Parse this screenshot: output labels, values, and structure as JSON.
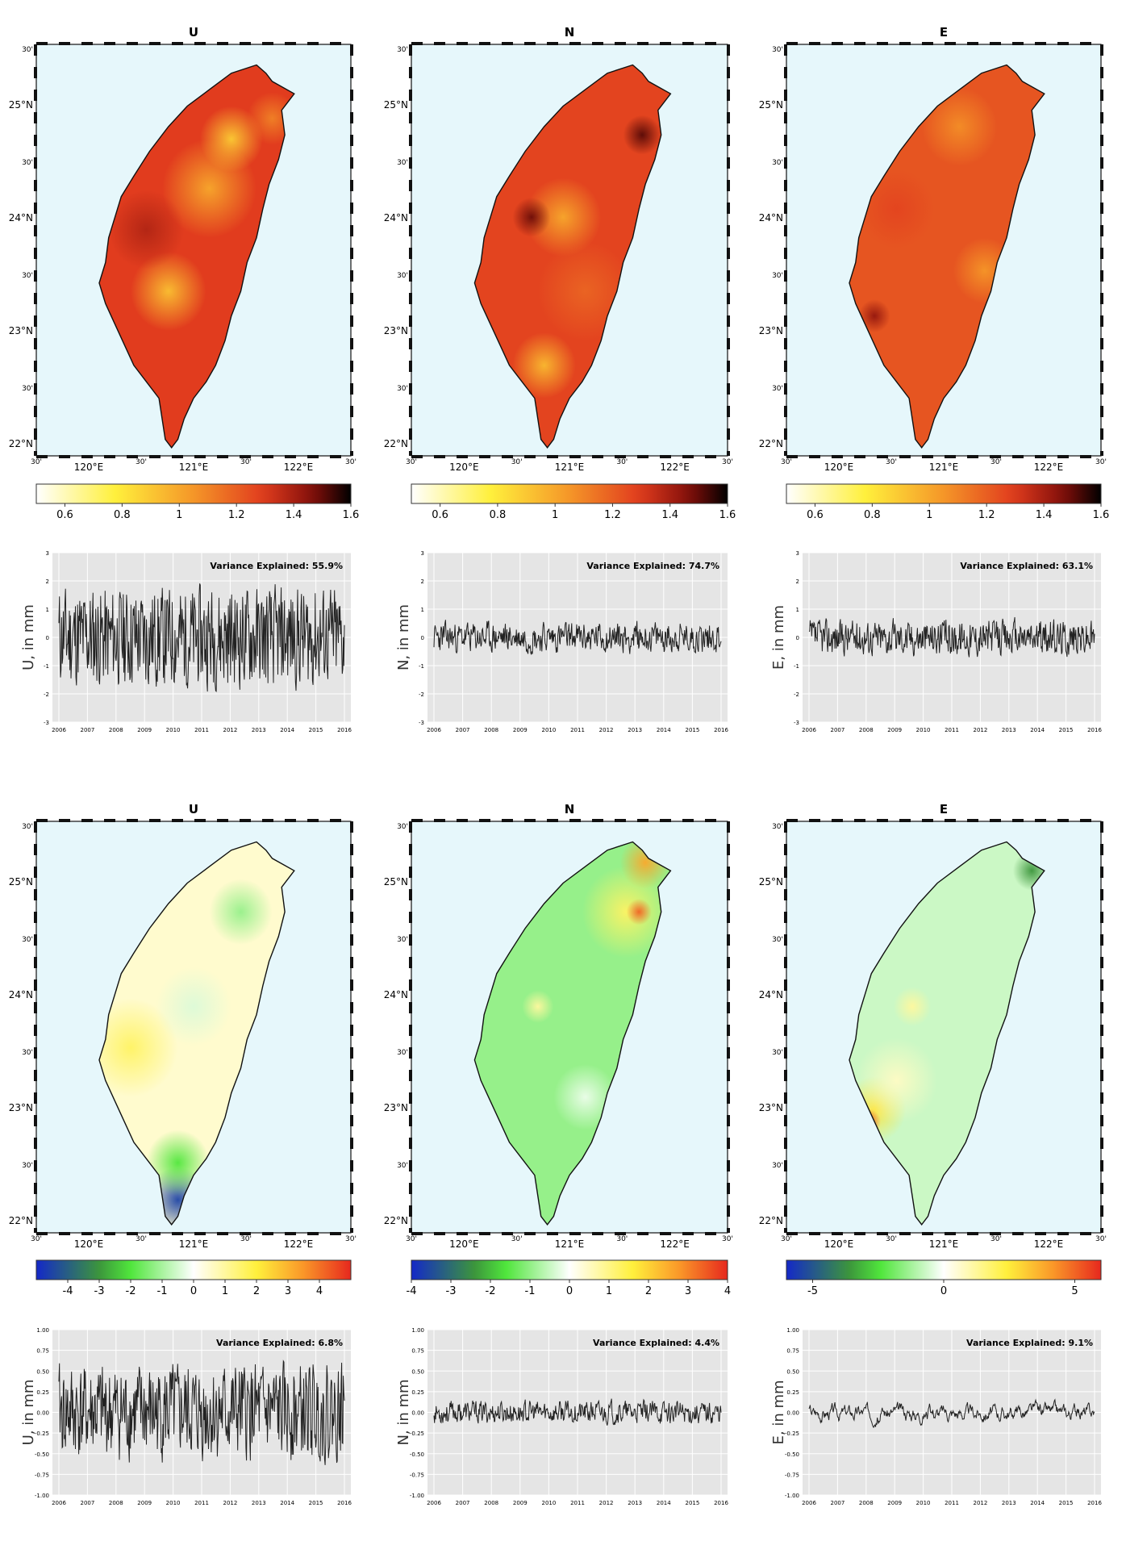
{
  "months": [
    "2006",
    "2007",
    "2008",
    "2009",
    "2010",
    "2011",
    "2012",
    "2013",
    "2014",
    "2015",
    "2016"
  ],
  "map_ticks": {
    "lat_labels": [
      "30'",
      "25°N",
      "30'",
      "24°N",
      "30'",
      "23°N",
      "30'",
      "22°N"
    ],
    "lon_labels": [
      "30'",
      "120°E",
      "30'",
      "121°E",
      "30'",
      "122°E",
      "30'"
    ]
  },
  "maps": [
    {
      "title": "U",
      "scheme": "heat",
      "cb_ticks": [
        "0.6",
        "0.8",
        "1",
        "1.2",
        "1.4",
        "1.6"
      ],
      "cb_min": 0.5,
      "cb_max": 1.6,
      "cb_vals": [
        0.6,
        0.8,
        1,
        1.2,
        1.4,
        1.6
      ]
    },
    {
      "title": "N",
      "scheme": "heat",
      "cb_ticks": [
        "0.6",
        "0.8",
        "1",
        "1.2",
        "1.4",
        "1.6"
      ],
      "cb_min": 0.5,
      "cb_max": 1.6,
      "cb_vals": [
        0.6,
        0.8,
        1,
        1.2,
        1.4,
        1.6
      ]
    },
    {
      "title": "E",
      "scheme": "heat",
      "cb_ticks": [
        "0.6",
        "0.8",
        "1",
        "1.2",
        "1.4",
        "1.6"
      ],
      "cb_min": 0.5,
      "cb_max": 1.6,
      "cb_vals": [
        0.6,
        0.8,
        1,
        1.2,
        1.4,
        1.6
      ]
    },
    {
      "title": "U",
      "scheme": "div",
      "cb_ticks": [
        "-4",
        "-3",
        "-2",
        "-1",
        "0",
        "1",
        "2",
        "3",
        "4"
      ],
      "cb_min": -5,
      "cb_max": 5,
      "cb_vals": [
        -4,
        -3,
        -2,
        -1,
        0,
        1,
        2,
        3,
        4
      ]
    },
    {
      "title": "N",
      "scheme": "div",
      "cb_ticks": [
        "-4",
        "-3",
        "-2",
        "-1",
        "0",
        "1",
        "2",
        "3",
        "4"
      ],
      "cb_min": -4,
      "cb_max": 4,
      "cb_vals": [
        -4,
        -3,
        -2,
        -1,
        0,
        1,
        2,
        3,
        4
      ]
    },
    {
      "title": "E",
      "scheme": "div",
      "cb_ticks": [
        "-5",
        "0",
        "5"
      ],
      "cb_min": -6,
      "cb_max": 6,
      "cb_vals": [
        -5,
        0,
        5
      ]
    }
  ],
  "chart_data": [
    {
      "type": "line",
      "name": "U",
      "ylabel": "U, in mm",
      "annotation": "Variance Explained: 55.9%",
      "ylim": [
        -3,
        3
      ],
      "y_ticks": [
        "-3",
        "-2",
        "-1",
        "0",
        "1",
        "2",
        "3"
      ],
      "seed": 11,
      "amp": 1.25,
      "smooth": 0.15,
      "x_ticks": [
        "2006",
        "2007",
        "2008",
        "2009",
        "2010",
        "2011",
        "2012",
        "2013",
        "2014",
        "2015",
        "2016"
      ]
    },
    {
      "type": "line",
      "name": "N",
      "ylabel": "N, in mm",
      "annotation": "Variance Explained: 74.7%",
      "ylim": [
        -3,
        3
      ],
      "y_ticks": [
        "-3",
        "-2",
        "-1",
        "0",
        "1",
        "2",
        "3"
      ],
      "seed": 23,
      "amp": 0.45,
      "smooth": 0.35,
      "x_ticks": [
        "2006",
        "2007",
        "2008",
        "2009",
        "2010",
        "2011",
        "2012",
        "2013",
        "2014",
        "2015",
        "2016"
      ]
    },
    {
      "type": "line",
      "name": "E",
      "ylabel": "E, in mm",
      "annotation": "Variance Explained: 63.1%",
      "ylim": [
        -3,
        3
      ],
      "y_ticks": [
        "-3",
        "-2",
        "-1",
        "0",
        "1",
        "2",
        "3"
      ],
      "seed": 37,
      "amp": 0.5,
      "smooth": 0.3,
      "x_ticks": [
        "2006",
        "2007",
        "2008",
        "2009",
        "2010",
        "2011",
        "2012",
        "2013",
        "2014",
        "2015",
        "2016"
      ]
    },
    {
      "type": "line",
      "name": "U",
      "ylabel": "U, in mm",
      "annotation": "Variance Explained: 6.8%",
      "ylim": [
        -1,
        1
      ],
      "y_ticks": [
        "-1.00",
        "-0.75",
        "-0.50",
        "-0.25",
        "0.00",
        "0.25",
        "0.50",
        "0.75",
        "1.00"
      ],
      "seed": 41,
      "amp": 0.42,
      "smooth": 0.2,
      "x_ticks": [
        "2006",
        "2007",
        "2008",
        "2009",
        "2010",
        "2011",
        "2012",
        "2013",
        "2014",
        "2015",
        "2016"
      ]
    },
    {
      "type": "line",
      "name": "N",
      "ylabel": "N, in mm",
      "annotation": "Variance Explained: 4.4%",
      "ylim": [
        -1,
        1
      ],
      "y_ticks": [
        "-1.00",
        "-0.75",
        "-0.50",
        "-0.25",
        "0.00",
        "0.25",
        "0.50",
        "0.75",
        "1.00"
      ],
      "seed": 53,
      "amp": 0.12,
      "smooth": 0.4,
      "x_ticks": [
        "2006",
        "2007",
        "2008",
        "2009",
        "2010",
        "2011",
        "2012",
        "2013",
        "2014",
        "2015",
        "2016"
      ]
    },
    {
      "type": "line",
      "name": "E",
      "ylabel": "E, in mm",
      "annotation": "Variance Explained: 9.1%",
      "ylim": [
        -1,
        1
      ],
      "y_ticks": [
        "-1.00",
        "-0.75",
        "-0.50",
        "-0.25",
        "0.00",
        "0.25",
        "0.50",
        "0.75",
        "1.00"
      ],
      "seed": 67,
      "amp": 0.18,
      "smooth": 0.8,
      "x_ticks": [
        "2006",
        "2007",
        "2008",
        "2009",
        "2010",
        "2011",
        "2012",
        "2013",
        "2014",
        "2015",
        "2016"
      ]
    }
  ]
}
